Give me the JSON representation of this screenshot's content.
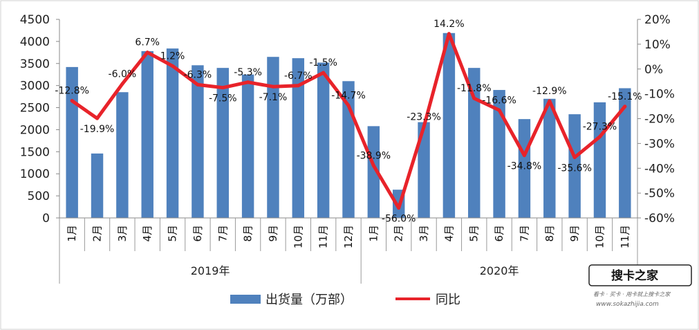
{
  "chart_data": {
    "type": "bar+line",
    "series": [
      {
        "name": "出货量（万部）",
        "kind": "bar",
        "axis": "left",
        "color": "#4F81BD",
        "values": [
          3420,
          1460,
          2850,
          3780,
          3840,
          3460,
          3400,
          3250,
          3650,
          3620,
          3520,
          3100,
          2080,
          640,
          2170,
          4190,
          3400,
          2900,
          2240,
          2700,
          2350,
          2620,
          2940
        ]
      },
      {
        "name": "同比",
        "kind": "line",
        "axis": "right",
        "color": "#E8232A",
        "values": [
          -12.8,
          -19.9,
          -6.0,
          6.7,
          1.2,
          -6.3,
          -7.5,
          -5.3,
          -7.1,
          -6.7,
          -1.5,
          -14.7,
          -38.9,
          -56.0,
          -23.3,
          14.2,
          -11.8,
          -16.6,
          -34.8,
          -12.9,
          -35.6,
          -27.3,
          -15.1
        ],
        "labels": [
          "-12.8%",
          "-19.9%",
          "-6.0%",
          "6.7%",
          "1.2%",
          "-6.3%",
          "-7.5%",
          "-5.3%",
          "-7.1%",
          "-6.7%",
          "-1.5%",
          "-14.7%",
          "-38.9%",
          "-56.0%",
          "-23.3%",
          "14.2%",
          "-11.8%",
          "-16.6%",
          "-34.8%",
          "-12.9%",
          "-35.6%",
          "-27.3%",
          "-15.1%"
        ]
      }
    ],
    "categories": [
      "1月",
      "2月",
      "3月",
      "4月",
      "5月",
      "6月",
      "7月",
      "8月",
      "9月",
      "10月",
      "11月",
      "12月",
      "1月",
      "2月",
      "3月",
      "4月",
      "5月",
      "6月",
      "7月",
      "8月",
      "9月",
      "10月",
      "11月"
    ],
    "groups": [
      {
        "label": "2019年",
        "count": 12
      },
      {
        "label": "2020年",
        "count": 11
      }
    ],
    "y_left": {
      "min": 0,
      "max": 4500,
      "step": 500,
      "ticks": [
        "0",
        "500",
        "1000",
        "1500",
        "2000",
        "2500",
        "3000",
        "3500",
        "4000",
        "4500"
      ]
    },
    "y_right": {
      "min": -60,
      "max": 20,
      "step": 10,
      "ticks": [
        "-60%",
        "-50%",
        "-40%",
        "-30%",
        "-20%",
        "-10%",
        "0%",
        "10%",
        "20%"
      ]
    },
    "grid": false,
    "legend_position": "bottom-center",
    "legend": [
      "出货量（万部）",
      "同比"
    ]
  },
  "watermark": {
    "brand": "搜卡之家",
    "tagline": "看卡 · 买卡 · 用卡就上搜卡之家",
    "url": "www.sokazhijia.com"
  }
}
